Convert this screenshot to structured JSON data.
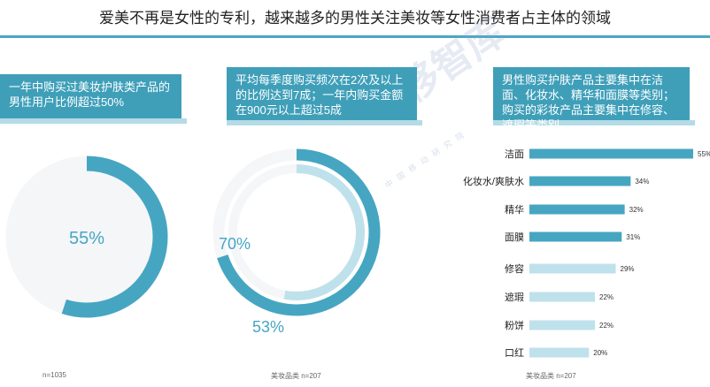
{
  "header": {
    "title": "爱美不再是女性的专利，越来越多的男性关注美妆等女性消费者占主体的领域"
  },
  "colors": {
    "accent": "#3f9fb9",
    "ring_main": "#46a6c2",
    "ring_light": "#bfe1ec",
    "track": "#f5f6f8",
    "bar_dark": "#46a6c2",
    "bar_light": "#bfe1ec"
  },
  "panel1": {
    "text": "一年中购买过美妆护肤类产品的男性用户比例超过50%",
    "note": "n=1035"
  },
  "panel2": {
    "text": "平均每季度购买频次在2次及以上的比例达到7成；一年内购买金额在900元以上超过5成",
    "note": "美妆品类 n=207"
  },
  "panel3": {
    "text": "男性购买护肤产品主要集中在洁面、化妆水、精华和面膜等类别；购买的彩妆产品主要集中在修容、遮瑕等类别",
    "note": "美妆品类 n=207"
  },
  "watermark": {
    "main": "中移智库",
    "sub": "中国移动研究院"
  },
  "chart_data": [
    {
      "type": "pie",
      "variant": "donut",
      "values": [
        55
      ],
      "labels": [
        "55%"
      ]
    },
    {
      "type": "pie",
      "variant": "concentric-donut",
      "values": [
        70,
        53
      ],
      "labels": [
        "70%",
        "53%"
      ]
    },
    {
      "type": "bar",
      "orientation": "horizontal",
      "categories": [
        "洁面",
        "化妆水/爽肤水",
        "精华",
        "面膜",
        "修容",
        "遮瑕",
        "粉饼",
        "口红"
      ],
      "values": [
        55,
        34,
        32,
        31,
        29,
        22,
        22,
        20
      ],
      "labels": [
        "55%",
        "34%",
        "32%",
        "31%",
        "29%",
        "22%",
        "22%",
        "20%"
      ],
      "groups": [
        "护肤",
        "护肤",
        "护肤",
        "护肤",
        "彩妆",
        "彩妆",
        "彩妆",
        "彩妆"
      ]
    }
  ]
}
